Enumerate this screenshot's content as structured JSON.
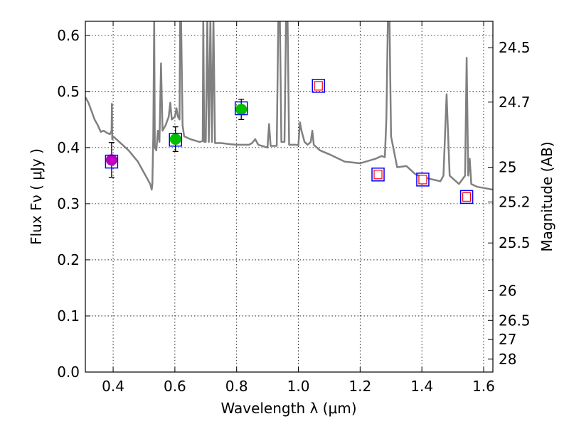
{
  "chart_data": {
    "type": "scatter",
    "xlabel": "Wavelength  λ (μm)",
    "ylabel": "Flux  Fν  ( μJy )",
    "ylabel_right": "Magnitude (AB)",
    "xlim": [
      0.31,
      1.63
    ],
    "ylim": [
      0.0,
      0.625
    ],
    "grid": true,
    "x_ticks": [
      0.4,
      0.6,
      0.8,
      1.0,
      1.2,
      1.4,
      1.6
    ],
    "x_tick_labels": [
      "0.4",
      "0.6",
      "0.8",
      "1.0",
      "1.2",
      "1.4",
      "1.6"
    ],
    "y_ticks": [
      0.0,
      0.1,
      0.2,
      0.3,
      0.4,
      0.5,
      0.6
    ],
    "y_tick_labels": [
      "0.0",
      "0.1",
      "0.2",
      "0.3",
      "0.4",
      "0.5",
      "0.6"
    ],
    "right_ticks": [
      {
        "label": "24.5",
        "flux": 0.578
      },
      {
        "label": "24.7",
        "flux": 0.481
      },
      {
        "label": "25",
        "flux": 0.365
      },
      {
        "label": "25.2",
        "flux": 0.303
      },
      {
        "label": "25.5",
        "flux": 0.23
      },
      {
        "label": "26",
        "flux": 0.145
      },
      {
        "label": "26.5",
        "flux": 0.092
      },
      {
        "label": "27",
        "flux": 0.058
      },
      {
        "label": "28",
        "flux": 0.023
      }
    ],
    "model_color": "#808080",
    "model_spectrum": [
      [
        0.31,
        0.49
      ],
      [
        0.32,
        0.48
      ],
      [
        0.33,
        0.465
      ],
      [
        0.34,
        0.45
      ],
      [
        0.35,
        0.44
      ],
      [
        0.36,
        0.428
      ],
      [
        0.37,
        0.43
      ],
      [
        0.38,
        0.426
      ],
      [
        0.39,
        0.424
      ],
      [
        0.395,
        0.43
      ],
      [
        0.396,
        0.478
      ],
      [
        0.397,
        0.415
      ],
      [
        0.4,
        0.42
      ],
      [
        0.42,
        0.41
      ],
      [
        0.45,
        0.395
      ],
      [
        0.48,
        0.375
      ],
      [
        0.5,
        0.355
      ],
      [
        0.52,
        0.335
      ],
      [
        0.525,
        0.325
      ],
      [
        0.527,
        0.335
      ],
      [
        0.53,
        0.42
      ],
      [
        0.533,
        0.63
      ],
      [
        0.535,
        0.4
      ],
      [
        0.54,
        0.395
      ],
      [
        0.545,
        0.43
      ],
      [
        0.55,
        0.41
      ],
      [
        0.555,
        0.55
      ],
      [
        0.56,
        0.43
      ],
      [
        0.57,
        0.44
      ],
      [
        0.58,
        0.455
      ],
      [
        0.585,
        0.48
      ],
      [
        0.59,
        0.45
      ],
      [
        0.6,
        0.455
      ],
      [
        0.605,
        0.47
      ],
      [
        0.61,
        0.455
      ],
      [
        0.615,
        0.45
      ],
      [
        0.617,
        0.63
      ],
      [
        0.62,
        0.63
      ],
      [
        0.625,
        0.44
      ],
      [
        0.63,
        0.42
      ],
      [
        0.65,
        0.415
      ],
      [
        0.68,
        0.41
      ],
      [
        0.69,
        0.412
      ],
      [
        0.692,
        0.63
      ],
      [
        0.695,
        0.41
      ],
      [
        0.7,
        0.41
      ],
      [
        0.705,
        0.63
      ],
      [
        0.71,
        0.41
      ],
      [
        0.715,
        0.63
      ],
      [
        0.72,
        0.41
      ],
      [
        0.725,
        0.63
      ],
      [
        0.73,
        0.408
      ],
      [
        0.75,
        0.408
      ],
      [
        0.78,
        0.406
      ],
      [
        0.8,
        0.405
      ],
      [
        0.84,
        0.405
      ],
      [
        0.85,
        0.408
      ],
      [
        0.86,
        0.415
      ],
      [
        0.87,
        0.405
      ],
      [
        0.9,
        0.4
      ],
      [
        0.905,
        0.442
      ],
      [
        0.91,
        0.403
      ],
      [
        0.93,
        0.403
      ],
      [
        0.935,
        0.63
      ],
      [
        0.94,
        0.63
      ],
      [
        0.945,
        0.41
      ],
      [
        0.955,
        0.41
      ],
      [
        0.96,
        0.63
      ],
      [
        0.965,
        0.63
      ],
      [
        0.97,
        0.405
      ],
      [
        0.99,
        0.405
      ],
      [
        1.0,
        0.404
      ],
      [
        1.005,
        0.445
      ],
      [
        1.01,
        0.43
      ],
      [
        1.02,
        0.41
      ],
      [
        1.03,
        0.405
      ],
      [
        1.04,
        0.41
      ],
      [
        1.045,
        0.43
      ],
      [
        1.05,
        0.405
      ],
      [
        1.07,
        0.395
      ],
      [
        1.1,
        0.388
      ],
      [
        1.15,
        0.375
      ],
      [
        1.2,
        0.372
      ],
      [
        1.25,
        0.38
      ],
      [
        1.27,
        0.385
      ],
      [
        1.28,
        0.383
      ],
      [
        1.285,
        0.45
      ],
      [
        1.29,
        0.63
      ],
      [
        1.295,
        0.63
      ],
      [
        1.3,
        0.42
      ],
      [
        1.32,
        0.365
      ],
      [
        1.35,
        0.367
      ],
      [
        1.38,
        0.352
      ],
      [
        1.42,
        0.345
      ],
      [
        1.46,
        0.34
      ],
      [
        1.47,
        0.35
      ],
      [
        1.48,
        0.495
      ],
      [
        1.49,
        0.35
      ],
      [
        1.52,
        0.335
      ],
      [
        1.54,
        0.35
      ],
      [
        1.545,
        0.56
      ],
      [
        1.55,
        0.35
      ],
      [
        1.555,
        0.38
      ],
      [
        1.56,
        0.335
      ],
      [
        1.58,
        0.33
      ],
      [
        1.6,
        0.328
      ],
      [
        1.63,
        0.325
      ]
    ],
    "photometry": [
      {
        "x": 0.395,
        "y": 0.378,
        "yerr": 0.031,
        "marker": "filled-circle",
        "color": "#bf00bf",
        "box_y": 0.375
      },
      {
        "x": 0.602,
        "y": 0.415,
        "yerr": 0.022,
        "marker": "filled-circle",
        "color": "#00bf00",
        "box_y": 0.414
      },
      {
        "x": 0.815,
        "y": 0.468,
        "yerr": 0.018,
        "marker": "filled-circle",
        "color": "#00bf00",
        "box_y": 0.47
      },
      {
        "x": 1.065,
        "y": 0.51,
        "marker": "open-square",
        "color": "#ff0000",
        "box_y": 0.51
      },
      {
        "x": 1.258,
        "y": 0.352,
        "marker": "open-square",
        "color": "#ff0000",
        "box_y": 0.352
      },
      {
        "x": 1.403,
        "y": 0.343,
        "marker": "open-square",
        "color": "#ff0000",
        "box_y": 0.343
      },
      {
        "x": 1.545,
        "y": 0.312,
        "marker": "open-square",
        "color": "#ff0000",
        "box_y": 0.312
      }
    ],
    "box_color": "#0000ff"
  }
}
